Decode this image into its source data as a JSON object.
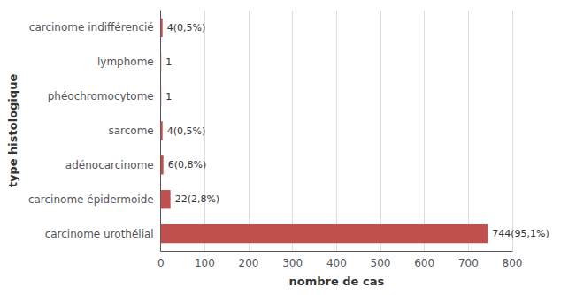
{
  "chart_data": {
    "type": "bar",
    "orientation": "horizontal",
    "categories": [
      "carcinome urothélial",
      "carcinome épidermoide",
      "adénocarcinome",
      "sarcome",
      "phéochromocytome",
      "lymphome",
      "carcinome indifférencié"
    ],
    "values": [
      744,
      22,
      6,
      4,
      1,
      1,
      4
    ],
    "value_labels": [
      "744(95,1%)",
      "22(2,8%)",
      "6(0,8%)",
      "4(0,5%)",
      "1",
      "1",
      "4(0,5%)"
    ],
    "data_labels": true,
    "color": "#c0504d",
    "xlabel": "nombre de cas",
    "ylabel": "type histologique",
    "xlim": [
      0,
      800
    ],
    "xticks": [
      0,
      100,
      200,
      300,
      400,
      500,
      600,
      700,
      800
    ],
    "grid": true
  }
}
